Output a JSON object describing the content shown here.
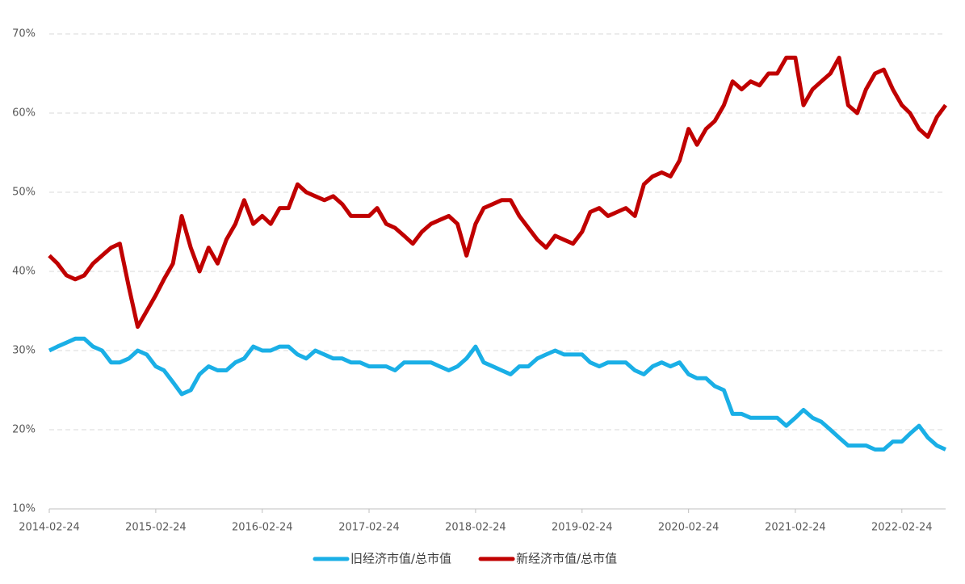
{
  "chart_data": {
    "type": "line",
    "x": [
      "2014-02-24",
      "2014-03-24",
      "2014-04-24",
      "2014-05-24",
      "2014-06-24",
      "2014-07-24",
      "2014-08-24",
      "2014-09-24",
      "2014-10-24",
      "2014-11-24",
      "2014-12-24",
      "2015-01-24",
      "2015-02-24",
      "2015-03-24",
      "2015-04-24",
      "2015-05-24",
      "2015-06-24",
      "2015-07-24",
      "2015-08-24",
      "2015-09-24",
      "2015-10-24",
      "2015-11-24",
      "2015-12-24",
      "2016-01-24",
      "2016-02-24",
      "2016-03-24",
      "2016-04-24",
      "2016-05-24",
      "2016-06-24",
      "2016-07-24",
      "2016-08-24",
      "2016-09-24",
      "2016-10-24",
      "2016-11-24",
      "2016-12-24",
      "2017-01-24",
      "2017-02-24",
      "2017-03-24",
      "2017-04-24",
      "2017-05-24",
      "2017-06-24",
      "2017-07-24",
      "2017-08-24",
      "2017-09-24",
      "2017-10-24",
      "2017-11-24",
      "2017-12-24",
      "2018-01-24",
      "2018-02-24",
      "2018-03-24",
      "2018-04-24",
      "2018-05-24",
      "2018-06-24",
      "2018-07-24",
      "2018-08-24",
      "2018-09-24",
      "2018-10-24",
      "2018-11-24",
      "2018-12-24",
      "2019-01-24",
      "2019-02-24",
      "2019-03-24",
      "2019-04-24",
      "2019-05-24",
      "2019-06-24",
      "2019-07-24",
      "2019-08-24",
      "2019-09-24",
      "2019-10-24",
      "2019-11-24",
      "2019-12-24",
      "2020-01-24",
      "2020-02-24",
      "2020-03-24",
      "2020-04-24",
      "2020-05-24",
      "2020-06-24",
      "2020-07-24",
      "2020-08-24",
      "2020-09-24",
      "2020-10-24",
      "2020-11-24",
      "2020-12-24",
      "2021-01-24",
      "2021-02-24",
      "2021-03-24",
      "2021-04-24",
      "2021-05-24",
      "2021-06-24",
      "2021-07-24",
      "2021-08-24",
      "2021-09-24",
      "2021-10-24",
      "2021-11-24",
      "2021-12-24",
      "2022-01-24",
      "2022-02-24",
      "2022-03-24",
      "2022-04-24",
      "2022-05-24",
      "2022-06-24",
      "2022-07-24"
    ],
    "series": [
      {
        "name": "旧经济市值/总市值",
        "color": "#1aafe6",
        "values": [
          30,
          30.5,
          31,
          31.5,
          31.5,
          30.5,
          30,
          28.5,
          28.5,
          29,
          30,
          29.5,
          28,
          27.5,
          26,
          24.5,
          25,
          27,
          28,
          27.5,
          27.5,
          28.5,
          29,
          30.5,
          30,
          30,
          30.5,
          30.5,
          29.5,
          29,
          30,
          29.5,
          29,
          29,
          28.5,
          28.5,
          28,
          28,
          28,
          27.5,
          28.5,
          28.5,
          28.5,
          28.5,
          28,
          27.5,
          28,
          29,
          30.5,
          28.5,
          28,
          27.5,
          27,
          28,
          28,
          29,
          29.5,
          30,
          29.5,
          29.5,
          29.5,
          28.5,
          28,
          28.5,
          28.5,
          28.5,
          27.5,
          27,
          28,
          28.5,
          28,
          28.5,
          27,
          26.5,
          26.5,
          25.5,
          25,
          22,
          22,
          21.5,
          21.5,
          21.5,
          21.5,
          20.5,
          21.5,
          22.5,
          21.5,
          21,
          20,
          19,
          18,
          18,
          18,
          17.5,
          17.5,
          18.5,
          18.5,
          19.5,
          20.5,
          19,
          18,
          17.5
        ]
      },
      {
        "name": "新经济市值/总市值",
        "color": "#c00000",
        "values": [
          42,
          41,
          39.5,
          39,
          39.5,
          41,
          42,
          43,
          43.5,
          38,
          33,
          35,
          37,
          39,
          41,
          47,
          43,
          40,
          43,
          41,
          44,
          46,
          49,
          46,
          47,
          46,
          48,
          48,
          51,
          50,
          49.5,
          49,
          49.5,
          48.5,
          47,
          47,
          47,
          48,
          46,
          45.5,
          44.5,
          43.5,
          45,
          46,
          46.5,
          47,
          46,
          42,
          46,
          48,
          48.5,
          49,
          49,
          47,
          45.5,
          44,
          43,
          44.5,
          44,
          43.5,
          45,
          47.5,
          48,
          47,
          47.5,
          48,
          47,
          51,
          52,
          52.5,
          52,
          54,
          58,
          56,
          58,
          59,
          61,
          64,
          63,
          64,
          63.5,
          65,
          65,
          67,
          67,
          61,
          63,
          64,
          65,
          67,
          61,
          60,
          63,
          65,
          65.5,
          63,
          61,
          60,
          58,
          57,
          59.5,
          61
        ]
      }
    ],
    "xlim": [
      "2014-02-24",
      "2022-07-24"
    ],
    "xticks": [
      "2014-02-24",
      "2015-02-24",
      "2016-02-24",
      "2017-02-24",
      "2018-02-24",
      "2019-02-24",
      "2020-02-24",
      "2021-02-24",
      "2022-02-24"
    ],
    "ylim": [
      10,
      70
    ],
    "yticks": [
      {
        "value": 10,
        "label": "10%"
      },
      {
        "value": 20,
        "label": "20%"
      },
      {
        "value": 30,
        "label": "30%"
      },
      {
        "value": 40,
        "label": "40%"
      },
      {
        "value": 50,
        "label": "50%"
      },
      {
        "value": 60,
        "label": "60%"
      },
      {
        "value": 70,
        "label": "70%"
      }
    ],
    "grid": true,
    "legend": "bottom"
  }
}
